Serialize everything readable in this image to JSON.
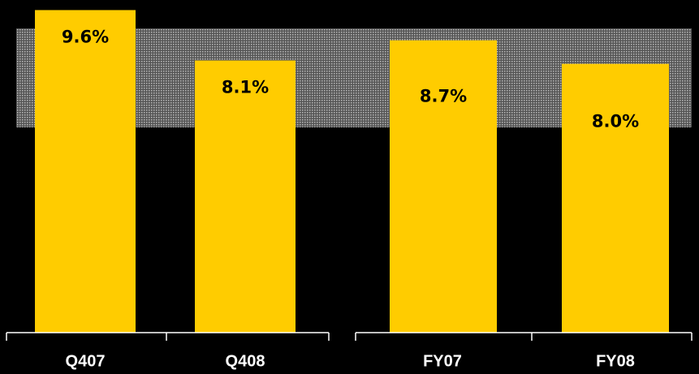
{
  "chart_data": {
    "type": "bar",
    "categories": [
      "Q407",
      "Q408",
      "FY07",
      "FY08"
    ],
    "values": [
      9.6,
      8.1,
      8.7,
      8.0
    ],
    "value_labels": [
      "9.6%",
      "8.1%",
      "8.7%",
      "8.0%"
    ],
    "color": "#ffcc00",
    "ylim": [
      0,
      9.9
    ]
  }
}
